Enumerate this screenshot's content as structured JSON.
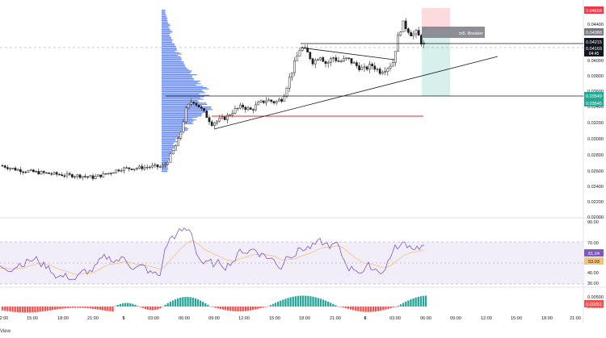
{
  "price_axis": {
    "ticks": [
      "0.04600",
      "0.04400",
      "0.04000",
      "0.03800",
      "0.03600",
      "0.03400",
      "0.03200",
      "0.03000",
      "0.02800",
      "0.02600",
      "0.02400",
      "0.02200",
      "0.02000"
    ],
    "badges": {
      "top_red": "0.04659",
      "gray_breaker": "0.04388",
      "current": "0.04215",
      "current2": "0.04169",
      "countdown": "04:45",
      "green1": "0.03549",
      "green2": "0.03545"
    }
  },
  "labels": {
    "m5_breaker": "m5. Breaker",
    "watermark": "View"
  },
  "rsi_axis": {
    "ticks": [
      "90.00",
      "70.00",
      "40.00",
      "30.00"
    ],
    "value_badge": "61.24",
    "ma_badge": "53.03"
  },
  "macd_axis": {
    "ticks": [
      "0.00500",
      "0.00000"
    ],
    "value_badge": "0.00261"
  },
  "time_axis": {
    "labels": [
      "2:00",
      "15:00",
      "18:00",
      "21:00",
      "5",
      "03:00",
      "06:00",
      "09:00",
      "12:00",
      "15:00",
      "18:00",
      "21:00",
      "6",
      "03:00",
      "06:00",
      "09:00",
      "12:00",
      "15:00",
      "18:00",
      "21:00"
    ]
  },
  "colors": {
    "up": "#26a69a",
    "down": "#ef5350",
    "candle": "#1e1e1e",
    "volume_profile": "#5b7ff0",
    "rsi_line": "#7e57c2",
    "rsi_ma": "#f5c27a",
    "rsi_band": "#ede7f6",
    "red_badge": "#f23645",
    "green_badge": "#22ab94",
    "gray_badge": "#787b86",
    "black_badge": "#131722"
  },
  "chart_data": {
    "type": "candlestick",
    "ylim": [
      0.02,
      0.047
    ],
    "candles_close_approx": [
      0.0264,
      0.0262,
      0.026,
      0.0259,
      0.0257,
      0.0256,
      0.0255,
      0.0256,
      0.0254,
      0.0253,
      0.0252,
      0.0251,
      0.025,
      0.0252,
      0.0253,
      0.0254,
      0.0256,
      0.0259,
      0.0261,
      0.0262,
      0.0263,
      0.0264,
      0.0262,
      0.0263,
      0.0264,
      0.0265,
      0.0272,
      0.029,
      0.033,
      0.0345,
      0.0335,
      0.033,
      0.032,
      0.0315,
      0.0318,
      0.033,
      0.0335,
      0.0345,
      0.0355,
      0.037,
      0.0395,
      0.041,
      0.04,
      0.0395,
      0.038,
      0.039,
      0.0378,
      0.0385,
      0.0395,
      0.042,
      0.0438,
      0.0432,
      0.0425,
      0.0418
    ],
    "rsi_range": [
      30,
      90
    ],
    "rsi_last": 61.24,
    "rsi_ma_last": 53.03,
    "macd_hist_last": 0.00261
  }
}
